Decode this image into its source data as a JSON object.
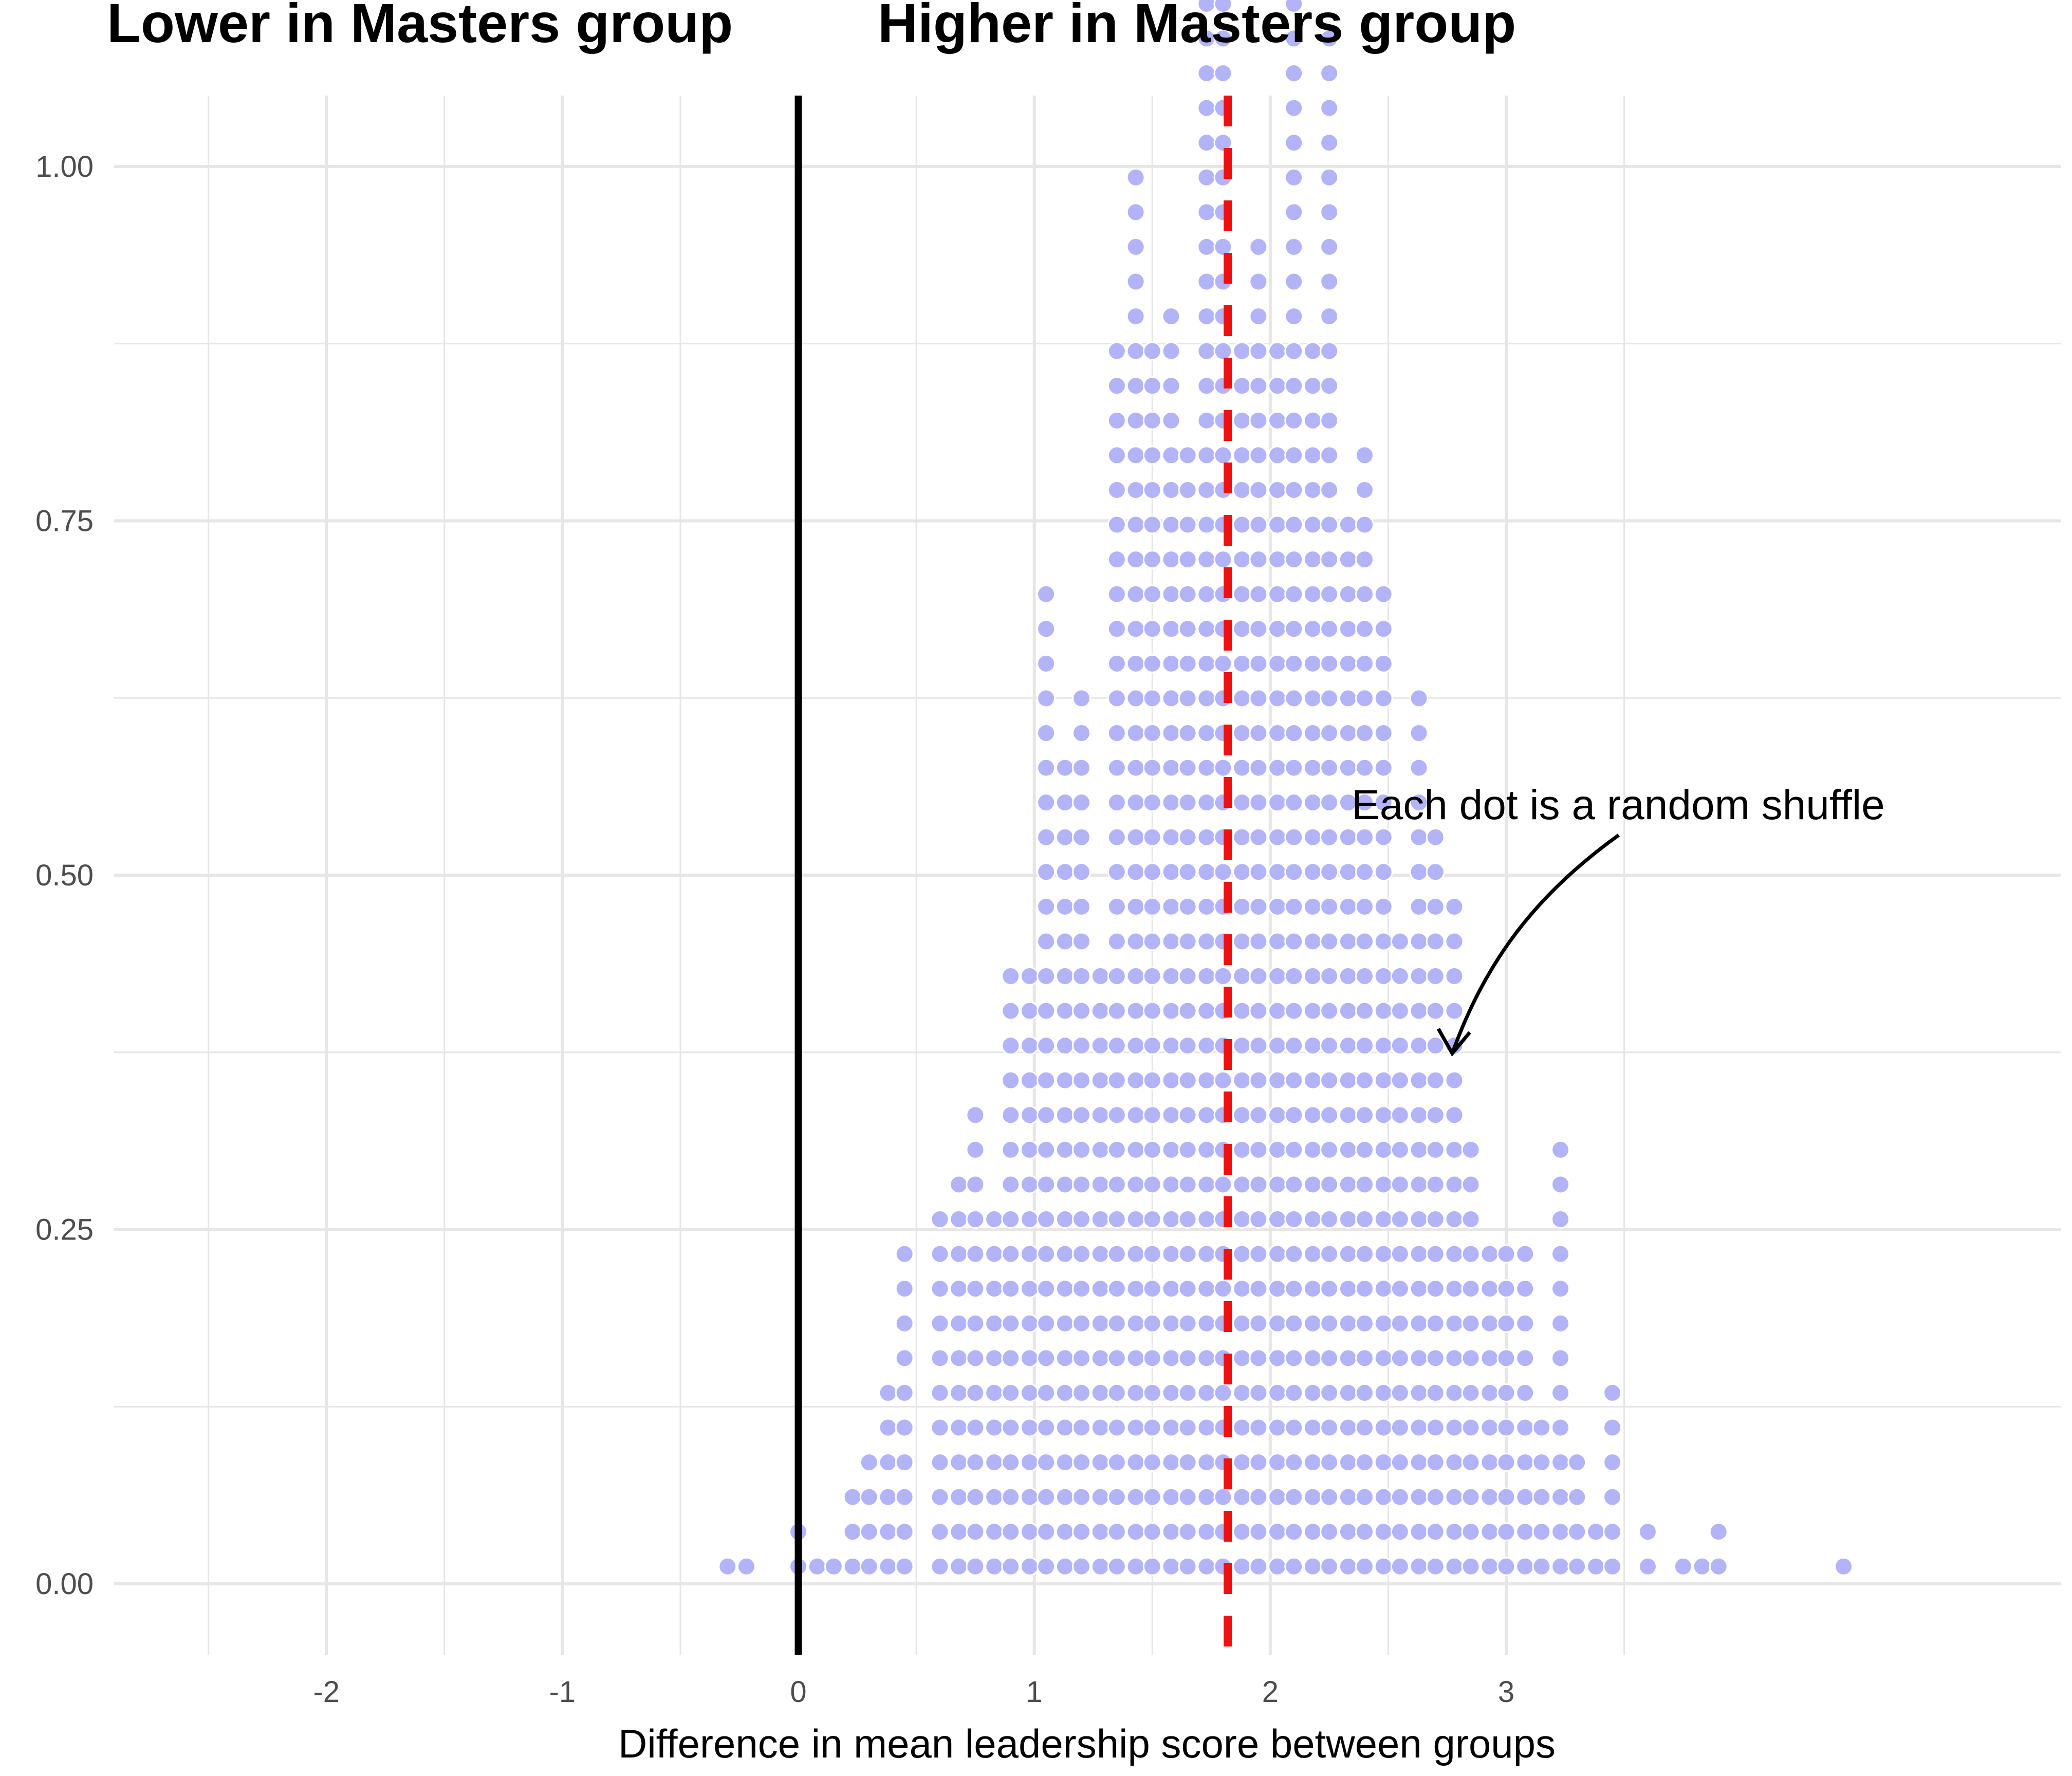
{
  "header": {
    "left_label": "Lower in Masters group",
    "right_label": "Higher in Masters group"
  },
  "annotation": {
    "text": "Each dot is a random shuffle"
  },
  "colors": {
    "dot": "#b3b3f8",
    "dot_outline": "#ffffff",
    "zero_line": "#000000",
    "observed_line": "#ee1111",
    "grid": "#e6e6e6",
    "tick_text": "#4d4d4d"
  },
  "chart_data": {
    "type": "dotplot",
    "title": "",
    "xlabel": "Difference in mean leadership score between groups",
    "ylabel": "",
    "xlim": [
      -2.9,
      5.35
    ],
    "ylim": [
      -0.05,
      1.05
    ],
    "x_ticks": [
      -2,
      -1,
      0,
      1,
      2,
      3
    ],
    "x_tick_labels": [
      "-2",
      "-1",
      "0",
      "1",
      "2",
      "3"
    ],
    "y_ticks": [
      0.0,
      0.25,
      0.5,
      0.75,
      1.0
    ],
    "y_tick_labels": [
      "0.00",
      "0.25",
      "0.50",
      "0.75",
      "1.00"
    ],
    "grid": true,
    "zero_reference_x": 0,
    "observed_difference_x": 1.82,
    "stack_unit": 0.0245,
    "stacks": [
      {
        "x": -0.3,
        "n": 1
      },
      {
        "x": -0.22,
        "n": 1
      },
      {
        "x": 0.0,
        "n": 2
      },
      {
        "x": 0.08,
        "n": 1
      },
      {
        "x": 0.15,
        "n": 1
      },
      {
        "x": 0.23,
        "n": 3
      },
      {
        "x": 0.3,
        "n": 4
      },
      {
        "x": 0.38,
        "n": 6
      },
      {
        "x": 0.45,
        "n": 10
      },
      {
        "x": 0.6,
        "n": 11
      },
      {
        "x": 0.68,
        "n": 12
      },
      {
        "x": 0.75,
        "n": 14
      },
      {
        "x": 0.83,
        "n": 11
      },
      {
        "x": 0.9,
        "n": 18
      },
      {
        "x": 0.98,
        "n": 18
      },
      {
        "x": 1.05,
        "n": 29
      },
      {
        "x": 1.13,
        "n": 24
      },
      {
        "x": 1.2,
        "n": 26
      },
      {
        "x": 1.28,
        "n": 18
      },
      {
        "x": 1.35,
        "n": 36
      },
      {
        "x": 1.43,
        "n": 41
      },
      {
        "x": 1.5,
        "n": 36
      },
      {
        "x": 1.58,
        "n": 37
      },
      {
        "x": 1.65,
        "n": 33
      },
      {
        "x": 1.73,
        "n": 59
      },
      {
        "x": 1.8,
        "n": 49
      },
      {
        "x": 1.88,
        "n": 36
      },
      {
        "x": 1.95,
        "n": 39
      },
      {
        "x": 2.03,
        "n": 36
      },
      {
        "x": 2.1,
        "n": 62
      },
      {
        "x": 2.18,
        "n": 36
      },
      {
        "x": 2.25,
        "n": 45
      },
      {
        "x": 2.33,
        "n": 31
      },
      {
        "x": 2.4,
        "n": 33
      },
      {
        "x": 2.48,
        "n": 29
      },
      {
        "x": 2.55,
        "n": 19
      },
      {
        "x": 2.63,
        "n": 26
      },
      {
        "x": 2.7,
        "n": 22
      },
      {
        "x": 2.78,
        "n": 20
      },
      {
        "x": 2.85,
        "n": 13
      },
      {
        "x": 2.93,
        "n": 10
      },
      {
        "x": 3.0,
        "n": 10
      },
      {
        "x": 3.08,
        "n": 10
      },
      {
        "x": 3.15,
        "n": 5
      },
      {
        "x": 3.23,
        "n": 13
      },
      {
        "x": 3.3,
        "n": 4
      },
      {
        "x": 3.38,
        "n": 2
      },
      {
        "x": 3.45,
        "n": 6
      },
      {
        "x": 3.6,
        "n": 2
      },
      {
        "x": 3.75,
        "n": 1
      },
      {
        "x": 3.83,
        "n": 1
      },
      {
        "x": 3.9,
        "n": 2
      },
      {
        "x": 4.43,
        "n": 1
      }
    ]
  }
}
